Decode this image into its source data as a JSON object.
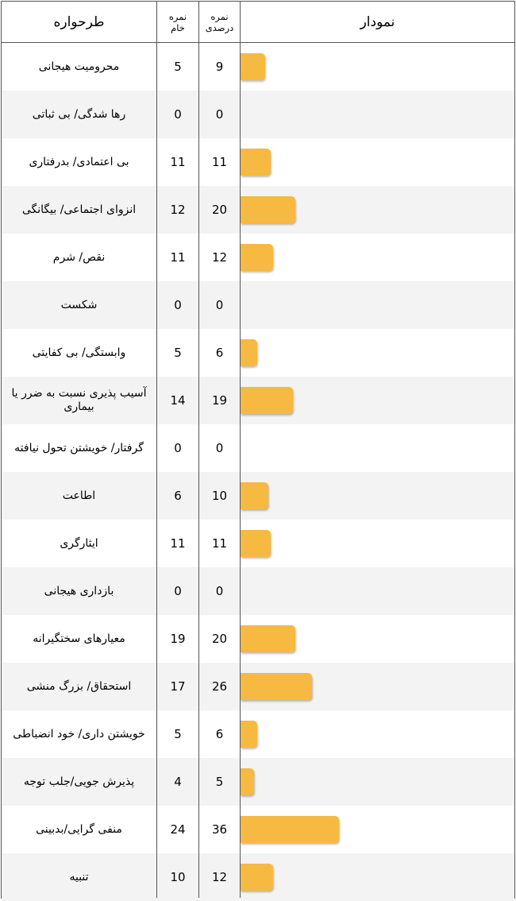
{
  "headers": {
    "schema": "طرحواره",
    "raw_line1": "نمره",
    "raw_line2": "خام",
    "pct_line1": "نمره",
    "pct_line2": "درصدی",
    "chart": "نمودار"
  },
  "chart_data": {
    "type": "bar",
    "orientation": "horizontal",
    "bar_color": "#f6b942",
    "max_value": 100,
    "rows": [
      {
        "label": "محرومیت هیجانی",
        "raw": 5,
        "percent": 9
      },
      {
        "label": "رها شدگی/ بی ثباتی",
        "raw": 0,
        "percent": 0
      },
      {
        "label": "بی اعتمادی/ بدرفتاری",
        "raw": 11,
        "percent": 11
      },
      {
        "label": "انزوای اجتماعی/ بیگانگی",
        "raw": 12,
        "percent": 20
      },
      {
        "label": "نقص/ شرم",
        "raw": 11,
        "percent": 12
      },
      {
        "label": "شکست",
        "raw": 0,
        "percent": 0
      },
      {
        "label": "وابستگی/ بی کفایتی",
        "raw": 5,
        "percent": 6
      },
      {
        "label": "آسیب پذیری نسبت به ضرر یا بیماری",
        "raw": 14,
        "percent": 19
      },
      {
        "label": "گرفتار/ خویشتن تحول نیافته",
        "raw": 0,
        "percent": 0
      },
      {
        "label": "اطاعت",
        "raw": 6,
        "percent": 10
      },
      {
        "label": "ایثارگری",
        "raw": 11,
        "percent": 11
      },
      {
        "label": "بازداری هیجانی",
        "raw": 0,
        "percent": 0
      },
      {
        "label": "معیارهای سختگیرانه",
        "raw": 19,
        "percent": 20
      },
      {
        "label": "استحقاق/ بزرگ منشی",
        "raw": 17,
        "percent": 26
      },
      {
        "label": "خویشتن داری/ خود انضباطی",
        "raw": 5,
        "percent": 6
      },
      {
        "label": "پذیرش جویی/جلب توجه",
        "raw": 4,
        "percent": 5
      },
      {
        "label": "منفی گرایی/بدبینی",
        "raw": 24,
        "percent": 36
      },
      {
        "label": "تنبیه",
        "raw": 10,
        "percent": 12
      }
    ]
  }
}
